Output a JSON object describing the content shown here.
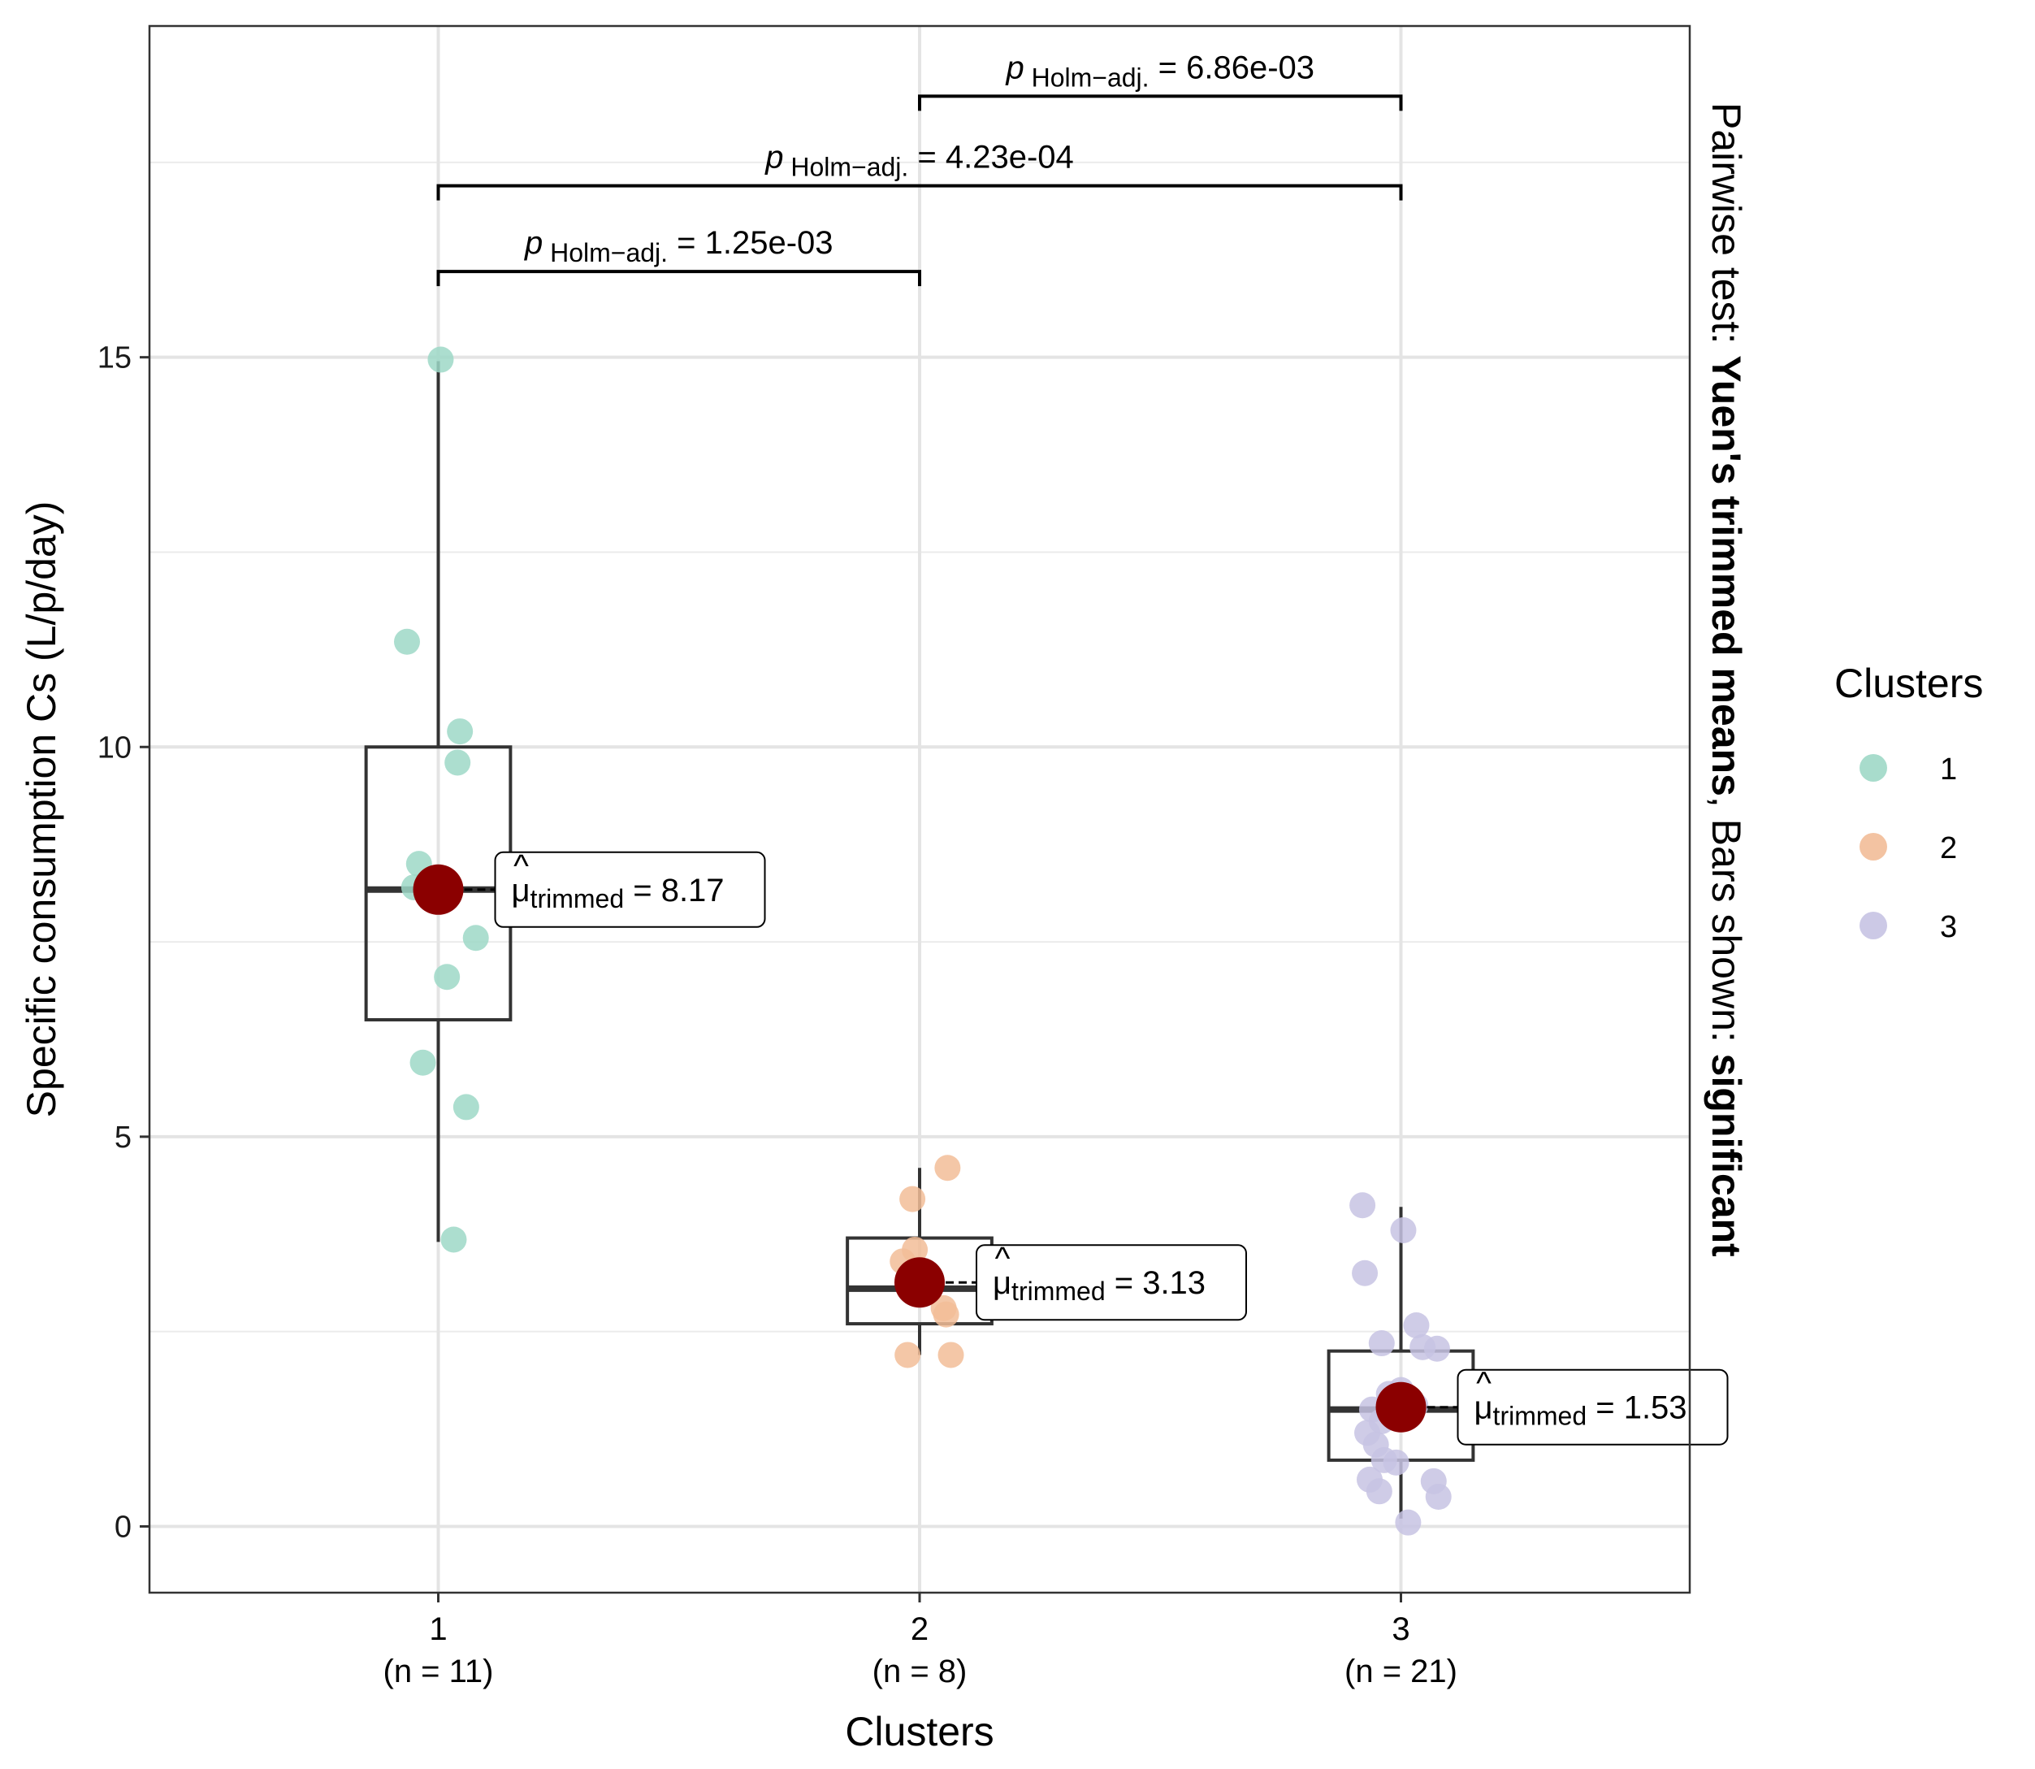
{
  "chart_data": {
    "type": "box",
    "xlabel": "Clusters",
    "ylabel": "Specific consumption Cs (L/p/day)",
    "ylim": [
      -0.85,
      19.25
    ],
    "yticks": [
      0,
      5,
      10,
      15
    ],
    "grid": true,
    "side_title": {
      "prefix": "Pairwise test: ",
      "bold1": "Yuen's trimmed means",
      "middle": ", Bars shown: ",
      "bold2": "significant"
    },
    "groups": [
      {
        "label": "1",
        "n_label": "(n = 11)",
        "color": "#9ed8c7",
        "box": {
          "q1": 6.5,
          "median": 8.17,
          "q3": 10.0,
          "whisker_low": 3.65,
          "whisker_high": 14.95
        },
        "trimmed_mean": 8.17,
        "mu_text": "= 8.17",
        "points": [
          {
            "x": 0.935,
            "y": 11.35
          },
          {
            "x": 1.045,
            "y": 10.2
          },
          {
            "x": 1.04,
            "y": 9.8
          },
          {
            "x": 0.96,
            "y": 8.5
          },
          {
            "x": 0.95,
            "y": 8.2
          },
          {
            "x": 1.078,
            "y": 7.55
          },
          {
            "x": 1.018,
            "y": 7.05
          },
          {
            "x": 0.968,
            "y": 5.95
          },
          {
            "x": 1.058,
            "y": 5.38
          },
          {
            "x": 1.032,
            "y": 3.68
          },
          {
            "x": 1.005,
            "y": 14.97
          }
        ]
      },
      {
        "label": "2",
        "n_label": "(n = 8)",
        "color": "#f2bd98",
        "box": {
          "q1": 2.6,
          "median": 3.05,
          "q3": 3.7,
          "whisker_low": 2.2,
          "whisker_high": 4.6
        },
        "trimmed_mean": 3.13,
        "mu_text": "= 3.13",
        "points": [
          {
            "x": 2.058,
            "y": 4.6
          },
          {
            "x": 1.985,
            "y": 4.2
          },
          {
            "x": 1.965,
            "y": 3.4
          },
          {
            "x": 1.99,
            "y": 3.55
          },
          {
            "x": 2.05,
            "y": 2.8
          },
          {
            "x": 2.055,
            "y": 2.72
          },
          {
            "x": 1.975,
            "y": 2.2
          },
          {
            "x": 2.065,
            "y": 2.2
          }
        ]
      },
      {
        "label": "3",
        "n_label": "(n = 21)",
        "color": "#c7c3e3",
        "box": {
          "q1": 0.85,
          "median": 1.5,
          "q3": 2.25,
          "whisker_low": 0.1,
          "whisker_high": 4.1
        },
        "trimmed_mean": 1.53,
        "mu_text": "= 1.53",
        "points": [
          {
            "x": 2.92,
            "y": 4.12
          },
          {
            "x": 3.005,
            "y": 3.8
          },
          {
            "x": 2.925,
            "y": 3.25
          },
          {
            "x": 3.032,
            "y": 2.58
          },
          {
            "x": 2.96,
            "y": 2.35
          },
          {
            "x": 3.045,
            "y": 2.3
          },
          {
            "x": 3.075,
            "y": 2.28
          },
          {
            "x": 2.975,
            "y": 1.7
          },
          {
            "x": 3.0,
            "y": 1.75
          },
          {
            "x": 2.94,
            "y": 1.5
          },
          {
            "x": 2.96,
            "y": 1.35
          },
          {
            "x": 2.93,
            "y": 1.2
          },
          {
            "x": 2.948,
            "y": 1.05
          },
          {
            "x": 2.965,
            "y": 0.85
          },
          {
            "x": 2.99,
            "y": 0.82
          },
          {
            "x": 2.935,
            "y": 0.6
          },
          {
            "x": 3.068,
            "y": 0.58
          },
          {
            "x": 2.955,
            "y": 0.45
          },
          {
            "x": 3.078,
            "y": 0.38
          },
          {
            "x": 3.015,
            "y": 0.05
          },
          {
            "x": 3.03,
            "y": 1.55
          }
        ]
      }
    ],
    "comparisons": [
      {
        "from": 1,
        "to": 2,
        "y": 16.1,
        "p_text": "= 1.25e-03"
      },
      {
        "from": 1,
        "to": 3,
        "y": 17.2,
        "p_text": "= 4.23e-04"
      },
      {
        "from": 2,
        "to": 3,
        "y": 18.35,
        "p_text": "= 6.86e-03"
      }
    ],
    "p_label": {
      "p": "p",
      "sub": "Holm−adj."
    },
    "mu_label": {
      "sub": "trimmed"
    },
    "legend": {
      "title": "Clusters",
      "items": [
        {
          "label": "1",
          "color": "#9ed8c7"
        },
        {
          "label": "2",
          "color": "#f2bd98"
        },
        {
          "label": "3",
          "color": "#c7c3e3"
        }
      ]
    },
    "mean_color": "#8b0000"
  }
}
